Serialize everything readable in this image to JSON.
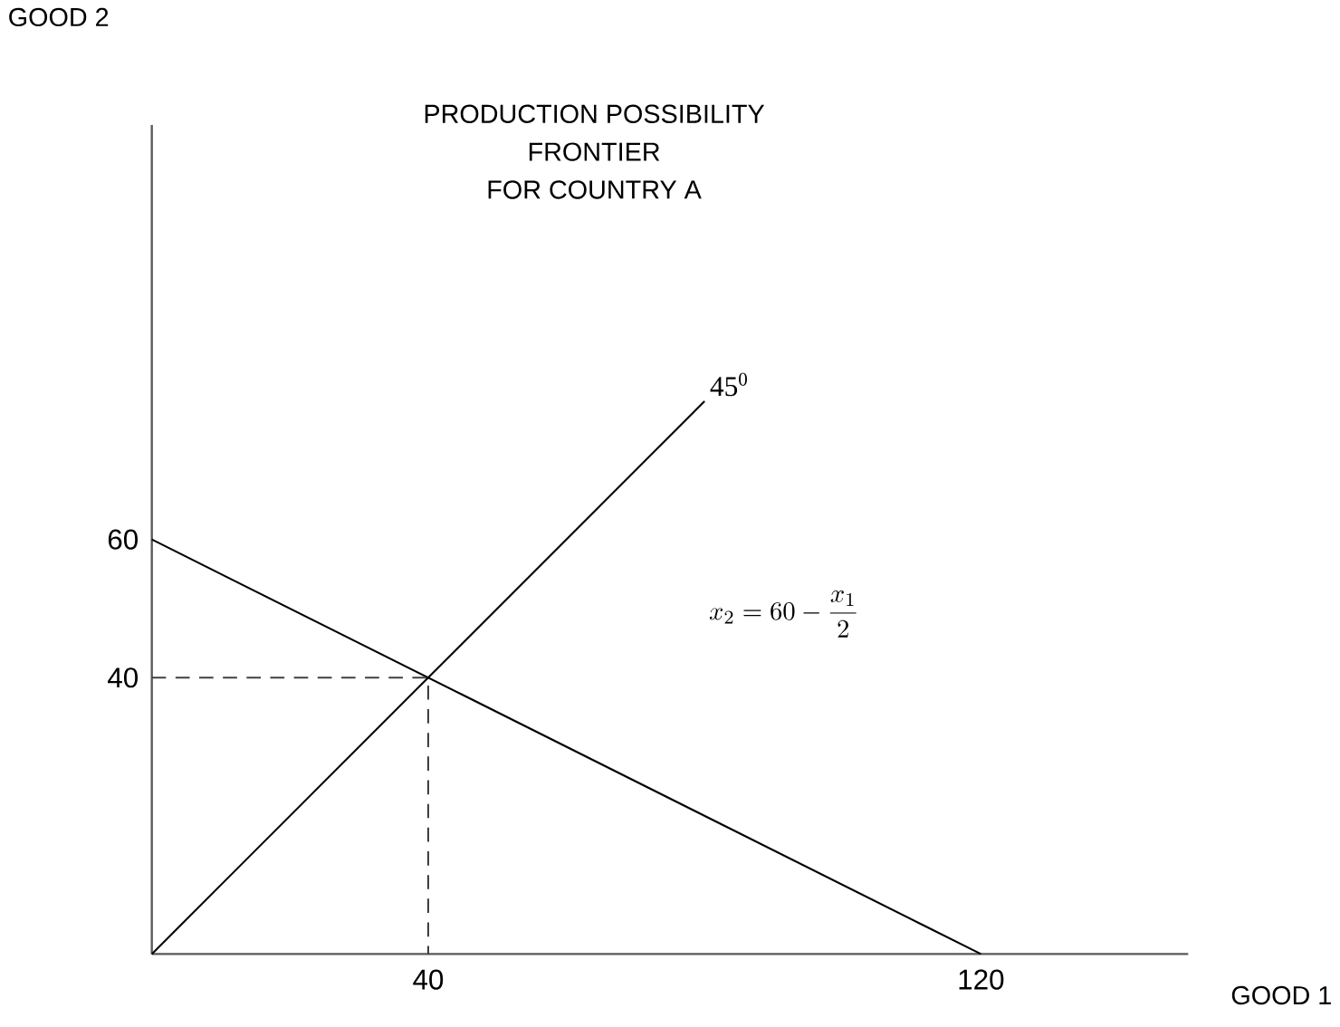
{
  "chart_data": {
    "type": "line",
    "title": "PRODUCTION POSSIBILITY\nFRONTIER\nFOR COUNTRY A",
    "xlabel": "GOOD 1",
    "ylabel": "GOOD 2",
    "xlim": [
      0,
      150
    ],
    "ylim": [
      0,
      120
    ],
    "xticks": [
      40,
      120
    ],
    "yticks": [
      40,
      60
    ],
    "grid": false,
    "marker": "none",
    "series": [
      {
        "color": "#000000",
        "x": [
          0,
          120
        ],
        "values": [
          60,
          0
        ],
        "line_style": "solid"
      },
      {
        "color": "#000000",
        "x": [
          0,
          80
        ],
        "values": [
          0,
          80
        ],
        "line_style": "solid"
      },
      {
        "color": "#404040",
        "x": [
          0,
          40,
          40
        ],
        "values": [
          40,
          40,
          0
        ],
        "line_style": "dashed"
      }
    ],
    "annotations": [
      {
        "text": "45$^{0}$",
        "x": 80,
        "y": 80
      },
      "x_2 = 60 - \\frac{x_1}{2}"
    ]
  }
}
